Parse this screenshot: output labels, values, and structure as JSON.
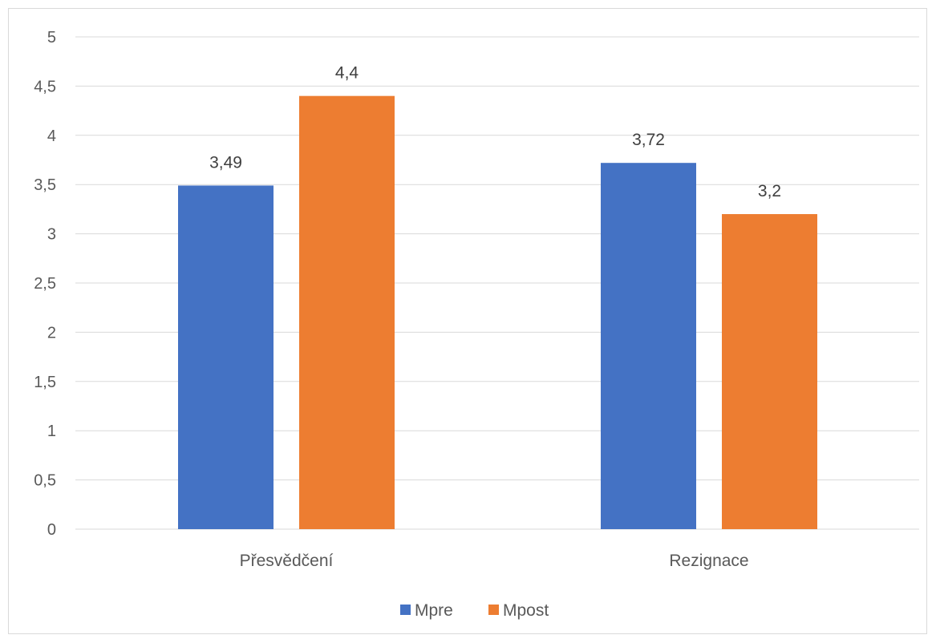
{
  "chart_data": {
    "type": "bar",
    "title": "",
    "xlabel": "",
    "ylabel": "",
    "categories": [
      "Přesvědčení",
      "Rezignace"
    ],
    "series": [
      {
        "name": "Mpre",
        "values": [
          3.49,
          3.72
        ],
        "labels": [
          "3,49",
          "3,72"
        ],
        "color": "#4472c4"
      },
      {
        "name": "Mpost",
        "values": [
          4.4,
          3.2
        ],
        "labels": [
          "4,4",
          "3,2"
        ],
        "color": "#ed7d31"
      }
    ],
    "ylim": [
      0,
      5
    ],
    "yticks": [
      0,
      0.5,
      1,
      1.5,
      2,
      2.5,
      3,
      3.5,
      4,
      4.5,
      5
    ],
    "ytick_labels": [
      "0",
      "0,5",
      "1",
      "1,5",
      "2",
      "2,5",
      "3",
      "3,5",
      "4",
      "4,5",
      "5"
    ],
    "grid": true,
    "gridline_color": "#d9d9d9",
    "legend_position": "bottom"
  }
}
